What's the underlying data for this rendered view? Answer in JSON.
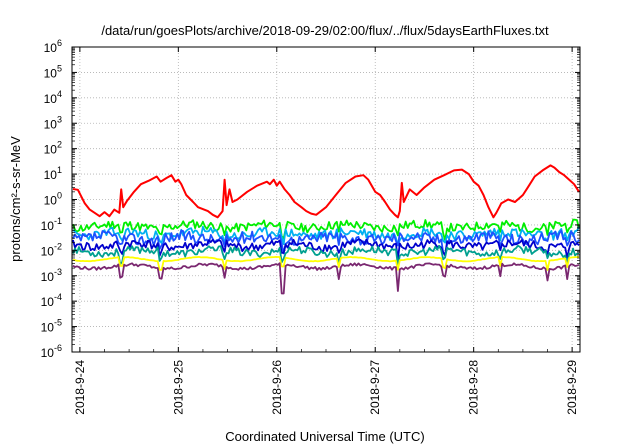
{
  "chart_data": {
    "type": "line",
    "title": "/data/run/goesPlots/archive/2018-09-29/02:00/flux/../flux/5daysEarthFluxes.txt",
    "xlabel": "Coordinated Universal Time (UTC)",
    "ylabel": "protons/cm²-s-sr-MeV",
    "y_scale": "log",
    "ylim": [
      1e-06,
      1000000.0
    ],
    "y_tick_exponents": [
      -6,
      -5,
      -4,
      -3,
      -2,
      -1,
      0,
      1,
      2,
      3,
      4,
      5,
      6
    ],
    "x_ticks": [
      {
        "t": 0,
        "label": "2018-9-24"
      },
      {
        "t": 1,
        "label": "2018-9-25"
      },
      {
        "t": 2,
        "label": "2018-9-26"
      },
      {
        "t": 3,
        "label": "2018-9-27"
      },
      {
        "t": 4,
        "label": "2018-9-28"
      },
      {
        "t": 5,
        "label": "2018-9-29"
      }
    ],
    "xlim_days": [
      -0.08,
      5.08
    ],
    "grid": true,
    "legend": "none",
    "series": [
      {
        "color": "#ff0000",
        "points": [
          [
            -0.07,
            2.6
          ],
          [
            -0.02,
            2.4
          ],
          [
            0.05,
            0.7
          ],
          [
            0.1,
            0.4
          ],
          [
            0.15,
            0.3
          ],
          [
            0.2,
            0.22
          ],
          [
            0.25,
            0.32
          ],
          [
            0.3,
            0.22
          ],
          [
            0.35,
            0.4
          ],
          [
            0.4,
            0.3
          ],
          [
            0.42,
            2.5
          ],
          [
            0.44,
            0.5
          ],
          [
            0.48,
            0.9
          ],
          [
            0.55,
            2.0
          ],
          [
            0.62,
            4.0
          ],
          [
            0.7,
            5.5
          ],
          [
            0.78,
            8.0
          ],
          [
            0.82,
            5.0
          ],
          [
            0.88,
            7.0
          ],
          [
            0.93,
            9.0
          ],
          [
            0.97,
            5.0
          ],
          [
            1.0,
            6.0
          ],
          [
            1.03,
            4.0
          ],
          [
            1.08,
            1.5
          ],
          [
            1.15,
            0.8
          ],
          [
            1.2,
            0.5
          ],
          [
            1.3,
            0.35
          ],
          [
            1.35,
            0.25
          ],
          [
            1.4,
            0.2
          ],
          [
            1.45,
            0.35
          ],
          [
            1.47,
            6.0
          ],
          [
            1.49,
            0.6
          ],
          [
            1.52,
            2.5
          ],
          [
            1.55,
            0.8
          ],
          [
            1.6,
            1.0
          ],
          [
            1.7,
            2.0
          ],
          [
            1.8,
            3.5
          ],
          [
            1.9,
            5.0
          ],
          [
            1.93,
            4.0
          ],
          [
            1.97,
            6.0
          ],
          [
            2.0,
            3.5
          ],
          [
            2.03,
            5.0
          ],
          [
            2.08,
            2.5
          ],
          [
            2.13,
            1.5
          ],
          [
            2.18,
            0.8
          ],
          [
            2.25,
            0.5
          ],
          [
            2.3,
            0.35
          ],
          [
            2.35,
            0.28
          ],
          [
            2.4,
            0.25
          ],
          [
            2.5,
            0.5
          ],
          [
            2.6,
            1.5
          ],
          [
            2.7,
            4.5
          ],
          [
            2.8,
            8.0
          ],
          [
            2.88,
            9.0
          ],
          [
            2.93,
            6.0
          ],
          [
            3.0,
            2.0
          ],
          [
            3.05,
            1.5
          ],
          [
            3.1,
            0.8
          ],
          [
            3.15,
            0.4
          ],
          [
            3.2,
            0.25
          ],
          [
            3.23,
            0.2
          ],
          [
            3.25,
            0.35
          ],
          [
            3.27,
            4.5
          ],
          [
            3.29,
            0.8
          ],
          [
            3.35,
            2.5
          ],
          [
            3.42,
            1.5
          ],
          [
            3.5,
            3.0
          ],
          [
            3.6,
            6.0
          ],
          [
            3.7,
            9.0
          ],
          [
            3.8,
            14.0
          ],
          [
            3.88,
            15.0
          ],
          [
            3.95,
            10.0
          ],
          [
            4.0,
            5.0
          ],
          [
            4.05,
            3.5
          ],
          [
            4.1,
            1.5
          ],
          [
            4.15,
            0.5
          ],
          [
            4.2,
            0.2
          ],
          [
            4.23,
            0.3
          ],
          [
            4.26,
            0.5
          ],
          [
            4.28,
            0.7
          ],
          [
            4.35,
            1.0
          ],
          [
            4.42,
            0.8
          ],
          [
            4.5,
            1.5
          ],
          [
            4.55,
            3.0
          ],
          [
            4.62,
            8.0
          ],
          [
            4.7,
            14.0
          ],
          [
            4.78,
            22.0
          ],
          [
            4.82,
            18.0
          ],
          [
            4.87,
            12.0
          ],
          [
            4.92,
            9.0
          ],
          [
            4.97,
            6.0
          ],
          [
            5.02,
            4.0
          ],
          [
            5.07,
            2.0
          ]
        ]
      },
      {
        "color": "#00ee00",
        "base": 0.09,
        "amp": 0.35,
        "seed": 11
      },
      {
        "color": "#00b0f0",
        "base": 0.045,
        "amp": 0.4,
        "seed": 23
      },
      {
        "color": "#1e50ff",
        "base": 0.03,
        "amp": 0.45,
        "seed": 37
      },
      {
        "color": "#0000cc",
        "base": 0.016,
        "amp": 0.35,
        "seed": 41
      },
      {
        "color": "#00a090",
        "base": 0.009,
        "amp": 0.3,
        "seed": 53
      },
      {
        "color": "#ffff00",
        "base": 0.0045,
        "amp": 0.02,
        "seed": 67
      },
      {
        "color": "#7a2870",
        "base": 0.0023,
        "amp": 0.12,
        "seed": 79
      }
    ],
    "dips_days": [
      0.42,
      0.82,
      1.47,
      2.06,
      2.63,
      3.23,
      3.7,
      4.27,
      4.75,
      4.95
    ]
  }
}
